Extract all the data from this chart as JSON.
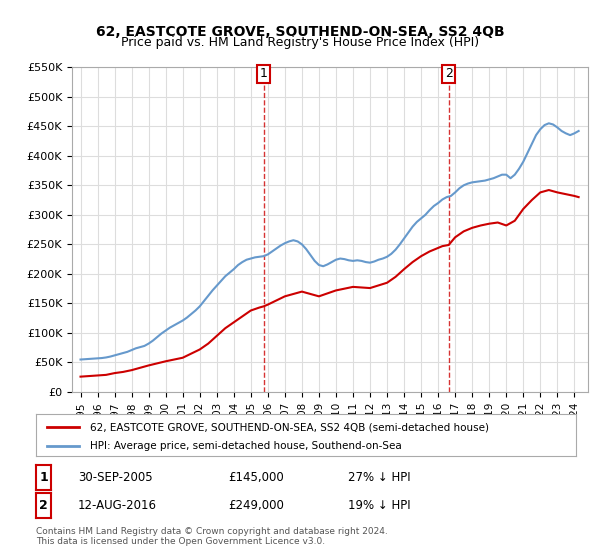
{
  "title": "62, EASTCOTE GROVE, SOUTHEND-ON-SEA, SS2 4QB",
  "subtitle": "Price paid vs. HM Land Registry's House Price Index (HPI)",
  "legend_line1": "62, EASTCOTE GROVE, SOUTHEND-ON-SEA, SS2 4QB (semi-detached house)",
  "legend_line2": "HPI: Average price, semi-detached house, Southend-on-Sea",
  "footnote": "Contains HM Land Registry data © Crown copyright and database right 2024.\nThis data is licensed under the Open Government Licence v3.0.",
  "annotation1": {
    "num": "1",
    "date": "30-SEP-2005",
    "price": "£145,000",
    "pct": "27% ↓ HPI",
    "x_year": 2005.75
  },
  "annotation2": {
    "num": "2",
    "date": "12-AUG-2016",
    "price": "£249,000",
    "pct": "19% ↓ HPI",
    "x_year": 2016.62
  },
  "ylim": [
    0,
    550000
  ],
  "xlim_start": 1994.5,
  "xlim_end": 2024.8,
  "red_color": "#cc0000",
  "blue_color": "#6699cc",
  "dashed_color": "#cc0000",
  "grid_color": "#dddddd",
  "bg_color": "#ffffff",
  "hpi_data": {
    "years": [
      1995.0,
      1995.25,
      1995.5,
      1995.75,
      1996.0,
      1996.25,
      1996.5,
      1996.75,
      1997.0,
      1997.25,
      1997.5,
      1997.75,
      1998.0,
      1998.25,
      1998.5,
      1998.75,
      1999.0,
      1999.25,
      1999.5,
      1999.75,
      2000.0,
      2000.25,
      2000.5,
      2000.75,
      2001.0,
      2001.25,
      2001.5,
      2001.75,
      2002.0,
      2002.25,
      2002.5,
      2002.75,
      2003.0,
      2003.25,
      2003.5,
      2003.75,
      2004.0,
      2004.25,
      2004.5,
      2004.75,
      2005.0,
      2005.25,
      2005.5,
      2005.75,
      2006.0,
      2006.25,
      2006.5,
      2006.75,
      2007.0,
      2007.25,
      2007.5,
      2007.75,
      2008.0,
      2008.25,
      2008.5,
      2008.75,
      2009.0,
      2009.25,
      2009.5,
      2009.75,
      2010.0,
      2010.25,
      2010.5,
      2010.75,
      2011.0,
      2011.25,
      2011.5,
      2011.75,
      2012.0,
      2012.25,
      2012.5,
      2012.75,
      2013.0,
      2013.25,
      2013.5,
      2013.75,
      2014.0,
      2014.25,
      2014.5,
      2014.75,
      2015.0,
      2015.25,
      2015.5,
      2015.75,
      2016.0,
      2016.25,
      2016.5,
      2016.75,
      2017.0,
      2017.25,
      2017.5,
      2017.75,
      2018.0,
      2018.25,
      2018.5,
      2018.75,
      2019.0,
      2019.25,
      2019.5,
      2019.75,
      2020.0,
      2020.25,
      2020.5,
      2020.75,
      2021.0,
      2021.25,
      2021.5,
      2021.75,
      2022.0,
      2022.25,
      2022.5,
      2022.75,
      2023.0,
      2023.25,
      2023.5,
      2023.75,
      2024.0,
      2024.25
    ],
    "values": [
      55000,
      55500,
      56000,
      56500,
      57000,
      57500,
      58500,
      60000,
      62000,
      64000,
      66000,
      68000,
      71000,
      74000,
      76000,
      78000,
      82000,
      87000,
      93000,
      99000,
      104000,
      109000,
      113000,
      117000,
      121000,
      126000,
      132000,
      138000,
      145000,
      154000,
      163000,
      172000,
      180000,
      188000,
      196000,
      202000,
      208000,
      215000,
      220000,
      224000,
      226000,
      228000,
      229000,
      230000,
      233000,
      238000,
      243000,
      248000,
      252000,
      255000,
      257000,
      255000,
      250000,
      242000,
      232000,
      222000,
      215000,
      213000,
      216000,
      220000,
      224000,
      226000,
      225000,
      223000,
      222000,
      223000,
      222000,
      220000,
      219000,
      221000,
      224000,
      226000,
      229000,
      234000,
      241000,
      250000,
      260000,
      270000,
      280000,
      288000,
      294000,
      300000,
      308000,
      315000,
      320000,
      326000,
      330000,
      332000,
      338000,
      345000,
      350000,
      353000,
      355000,
      356000,
      357000,
      358000,
      360000,
      362000,
      365000,
      368000,
      368000,
      362000,
      368000,
      378000,
      390000,
      405000,
      420000,
      435000,
      445000,
      452000,
      455000,
      453000,
      448000,
      442000,
      438000,
      435000,
      438000,
      442000
    ]
  },
  "price_data": {
    "years": [
      1995.0,
      1995.5,
      1996.0,
      1996.5,
      1997.0,
      1997.5,
      1998.0,
      1999.0,
      2000.0,
      2001.0,
      2002.0,
      2002.5,
      2003.0,
      2003.5,
      2004.0,
      2004.5,
      2005.0,
      2005.5,
      2005.75,
      2006.0,
      2007.0,
      2008.0,
      2009.0,
      2010.0,
      2011.0,
      2012.0,
      2013.0,
      2013.5,
      2014.0,
      2014.5,
      2015.0,
      2015.5,
      2016.0,
      2016.25,
      2016.62,
      2017.0,
      2017.5,
      2018.0,
      2018.5,
      2019.0,
      2019.5,
      2020.0,
      2020.5,
      2021.0,
      2021.5,
      2022.0,
      2022.5,
      2023.0,
      2023.5,
      2024.0,
      2024.25
    ],
    "values": [
      26000,
      27000,
      28000,
      29000,
      32000,
      34000,
      37000,
      45000,
      52000,
      58000,
      72000,
      82000,
      95000,
      108000,
      118000,
      128000,
      138000,
      143000,
      145000,
      148000,
      162000,
      170000,
      162000,
      172000,
      178000,
      176000,
      185000,
      195000,
      208000,
      220000,
      230000,
      238000,
      244000,
      247000,
      249000,
      262000,
      272000,
      278000,
      282000,
      285000,
      287000,
      282000,
      290000,
      310000,
      325000,
      338000,
      342000,
      338000,
      335000,
      332000,
      330000
    ]
  }
}
